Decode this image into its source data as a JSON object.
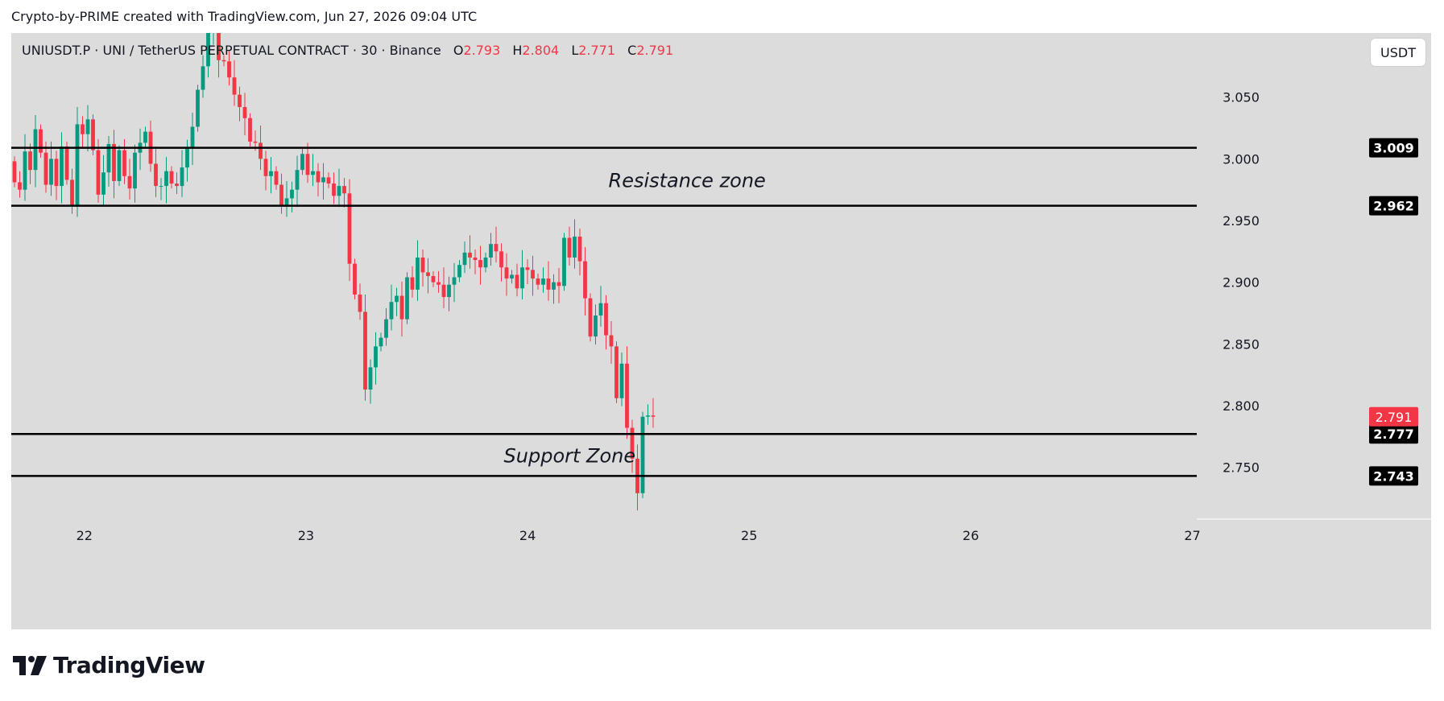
{
  "header": {
    "attribution": "Crypto-by-PRIME created with TradingView.com, Jun 27, 2026 09:04 UTC"
  },
  "legend": {
    "symbol_text": "UNIUSDT.P · UNI / TetherUS PERPETUAL CONTRACT · 30 · Binance",
    "o_label": "O",
    "o_value": "2.793",
    "h_label": "H",
    "h_value": "2.804",
    "l_label": "L",
    "l_value": "2.771",
    "c_label": "C",
    "c_value": "2.791"
  },
  "unit_button": "USDT",
  "logo_text": "TradingView",
  "colors": {
    "up": "#089981",
    "down": "#f23645",
    "pane": "#dcdcdc",
    "line": "#000000"
  },
  "chart_data": {
    "type": "candlestick",
    "symbol": "UNIUSDT.P",
    "timeframe": "30",
    "price_axis": {
      "ticks": [
        "3.050",
        "3.000",
        "2.950",
        "2.900",
        "2.850",
        "2.800",
        "2.750"
      ],
      "range": [
        2.708,
        3.102
      ]
    },
    "time_axis": {
      "ticks": [
        "22",
        "23",
        "24",
        "25",
        "26",
        "27"
      ],
      "range": [
        21.67,
        27.02
      ]
    },
    "last_price": {
      "value": 2.791,
      "label": "2.791"
    },
    "horizontal_levels": [
      {
        "value": 3.009,
        "label": "3.009"
      },
      {
        "value": 2.962,
        "label": "2.962"
      },
      {
        "value": 2.777,
        "label": "2.777"
      },
      {
        "value": 2.743,
        "label": "2.743"
      }
    ],
    "annotations": [
      {
        "text": "Resistance zone",
        "x": 24.72,
        "y": 2.977
      },
      {
        "text": "Support Zone",
        "x": 24.19,
        "y": 2.754
      }
    ],
    "candles_note": "30-minute candles approximately read from the chart, oldest to newest",
    "candles": [
      [
        2.998,
        2.981
      ],
      [
        2.981,
        2.975
      ],
      [
        2.975,
        3.006
      ],
      [
        3.006,
        2.991
      ],
      [
        2.991,
        3.024
      ],
      [
        3.024,
        3.005
      ],
      [
        3.005,
        2.979
      ],
      [
        2.979,
        3.0
      ],
      [
        3.0,
        2.978
      ],
      [
        2.978,
        3.01
      ],
      [
        3.01,
        2.983
      ],
      [
        2.983,
        2.962
      ],
      [
        2.962,
        3.028
      ],
      [
        3.028,
        3.02
      ],
      [
        3.02,
        3.032
      ],
      [
        3.032,
        3.007
      ],
      [
        3.007,
        2.971
      ],
      [
        2.971,
        2.989
      ],
      [
        2.989,
        3.012
      ],
      [
        3.012,
        2.982
      ],
      [
        2.982,
        3.007
      ],
      [
        3.007,
        2.986
      ],
      [
        2.986,
        2.976
      ],
      [
        2.976,
        3.005
      ],
      [
        3.005,
        3.013
      ],
      [
        3.013,
        3.022
      ],
      [
        3.022,
        2.996
      ],
      [
        2.996,
        2.978
      ],
      [
        2.978,
        2.978
      ],
      [
        2.978,
        2.99
      ],
      [
        2.99,
        2.98
      ],
      [
        2.98,
        2.978
      ],
      [
        2.978,
        2.993
      ],
      [
        2.993,
        3.009
      ],
      [
        3.009,
        3.026
      ],
      [
        3.026,
        3.056
      ],
      [
        3.056,
        3.075
      ],
      [
        3.075,
        3.104
      ],
      [
        3.104,
        3.113
      ],
      [
        3.113,
        3.08
      ],
      [
        3.08,
        3.079
      ],
      [
        3.079,
        3.066
      ],
      [
        3.066,
        3.052
      ],
      [
        3.052,
        3.042
      ],
      [
        3.042,
        3.033
      ],
      [
        3.033,
        3.014
      ],
      [
        3.014,
        3.013
      ],
      [
        3.013,
        3.0
      ],
      [
        3.0,
        2.986
      ],
      [
        2.986,
        2.99
      ],
      [
        2.99,
        2.979
      ],
      [
        2.979,
        2.962
      ],
      [
        2.962,
        2.968
      ],
      [
        2.968,
        2.975
      ],
      [
        2.975,
        2.991
      ],
      [
        2.991,
        3.004
      ],
      [
        3.004,
        2.987
      ],
      [
        2.987,
        2.99
      ],
      [
        2.99,
        2.981
      ],
      [
        2.981,
        2.985
      ],
      [
        2.985,
        2.98
      ],
      [
        2.98,
        2.97
      ],
      [
        2.97,
        2.978
      ],
      [
        2.978,
        2.972
      ],
      [
        2.972,
        2.915
      ],
      [
        2.915,
        2.89
      ],
      [
        2.89,
        2.876
      ],
      [
        2.876,
        2.813
      ],
      [
        2.813,
        2.831
      ],
      [
        2.831,
        2.848
      ],
      [
        2.848,
        2.855
      ],
      [
        2.855,
        2.87
      ],
      [
        2.87,
        2.884
      ],
      [
        2.884,
        2.889
      ],
      [
        2.889,
        2.87
      ],
      [
        2.87,
        2.904
      ],
      [
        2.904,
        2.894
      ],
      [
        2.894,
        2.92
      ],
      [
        2.92,
        2.908
      ],
      [
        2.908,
        2.905
      ],
      [
        2.905,
        2.9
      ],
      [
        2.9,
        2.898
      ],
      [
        2.898,
        2.888
      ],
      [
        2.888,
        2.898
      ],
      [
        2.898,
        2.904
      ],
      [
        2.904,
        2.914
      ],
      [
        2.914,
        2.924
      ],
      [
        2.924,
        2.92
      ],
      [
        2.92,
        2.918
      ],
      [
        2.918,
        2.912
      ],
      [
        2.912,
        2.92
      ],
      [
        2.92,
        2.931
      ],
      [
        2.931,
        2.925
      ],
      [
        2.925,
        2.912
      ],
      [
        2.912,
        2.903
      ],
      [
        2.903,
        2.906
      ],
      [
        2.906,
        2.895
      ],
      [
        2.895,
        2.912
      ],
      [
        2.912,
        2.91
      ],
      [
        2.91,
        2.903
      ],
      [
        2.903,
        2.898
      ],
      [
        2.898,
        2.903
      ],
      [
        2.903,
        2.894
      ],
      [
        2.894,
        2.9
      ],
      [
        2.9,
        2.897
      ],
      [
        2.897,
        2.936
      ],
      [
        2.936,
        2.92
      ],
      [
        2.92,
        2.937
      ],
      [
        2.937,
        2.917
      ],
      [
        2.917,
        2.887
      ],
      [
        2.887,
        2.856
      ],
      [
        2.856,
        2.873
      ],
      [
        2.873,
        2.883
      ],
      [
        2.883,
        2.857
      ],
      [
        2.857,
        2.848
      ],
      [
        2.848,
        2.806
      ],
      [
        2.806,
        2.834
      ],
      [
        2.834,
        2.782
      ],
      [
        2.782,
        2.757
      ],
      [
        2.757,
        2.729
      ],
      [
        2.729,
        2.791
      ],
      [
        2.791,
        2.792
      ],
      [
        2.792,
        2.791
      ]
    ]
  }
}
